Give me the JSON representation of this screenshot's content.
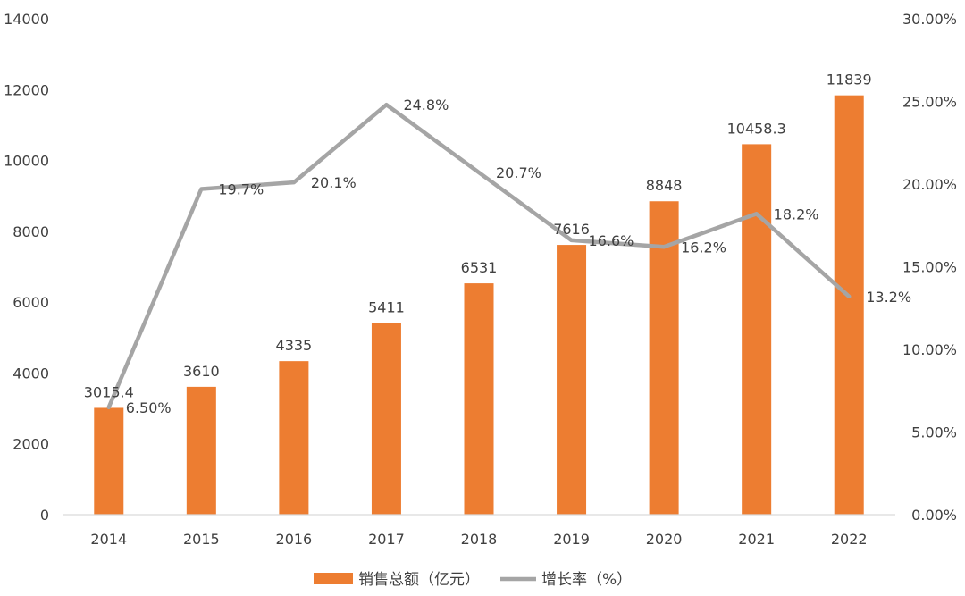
{
  "chart_data": {
    "type": "bar+line",
    "title": "",
    "categories": [
      "2014",
      "2015",
      "2016",
      "2017",
      "2018",
      "2019",
      "2020",
      "2021",
      "2022"
    ],
    "series": [
      {
        "name": "销售总额（亿元）",
        "type": "bar",
        "axis": "left",
        "color": "#ED7D31",
        "values": [
          3015.4,
          3610,
          4335,
          5411,
          6531,
          7616,
          8848,
          10458.3,
          11839
        ],
        "labels": [
          "3015.4",
          "3610",
          "4335",
          "5411",
          "6531",
          "7616",
          "8848",
          "10458.3",
          "11839"
        ]
      },
      {
        "name": "增长率（%）",
        "type": "line",
        "axis": "right",
        "color": "#A5A5A5",
        "values": [
          6.5,
          19.7,
          20.1,
          24.8,
          20.7,
          16.6,
          16.2,
          18.2,
          13.2
        ],
        "labels": [
          "6.50%",
          "19.7%",
          "20.1%",
          "24.8%",
          "20.7%",
          "16.6%",
          "16.2%",
          "18.2%",
          "13.2%"
        ]
      }
    ],
    "y_left": {
      "range": [
        0,
        14000
      ],
      "ticks": [
        "0",
        "2000",
        "4000",
        "6000",
        "8000",
        "10000",
        "12000",
        "14000"
      ]
    },
    "y_right": {
      "range": [
        0,
        30
      ],
      "ticks": [
        "0.00%",
        "5.00%",
        "10.00%",
        "15.00%",
        "20.00%",
        "25.00%",
        "30.00%"
      ]
    },
    "xlabel": "",
    "ylabel_left": "",
    "ylabel_right": "",
    "legend": {
      "position": "bottom",
      "items": [
        "销售总额（亿元）",
        "增长率（%）"
      ]
    },
    "grid": false
  }
}
